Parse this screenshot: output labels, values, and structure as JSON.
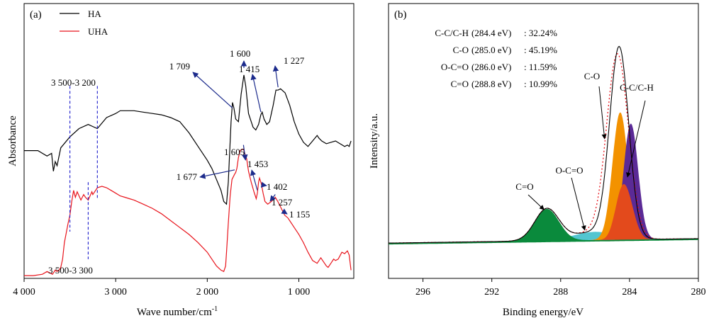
{
  "chart_data": [
    {
      "panel_label": "(a)",
      "type": "line",
      "xlabel": "Wave number/cm",
      "xlabel_sup": "-1",
      "ylabel": "Absorbance",
      "xlim": [
        4000,
        400
      ],
      "xticks": [
        4000,
        3000,
        2000,
        1000
      ],
      "xtick_labels": [
        "4 000",
        "3 000",
        "2 000",
        "1 000"
      ],
      "grid": false,
      "legend": "top-left",
      "series": [
        {
          "name": "HA",
          "color": "#000000",
          "points": [
            [
              4000,
              0.535
            ],
            [
              3850,
              0.535
            ],
            [
              3750,
              0.555
            ],
            [
              3700,
              0.545
            ],
            [
              3680,
              0.61
            ],
            [
              3660,
              0.575
            ],
            [
              3640,
              0.59
            ],
            [
              3600,
              0.525
            ],
            [
              3500,
              0.485
            ],
            [
              3400,
              0.455
            ],
            [
              3300,
              0.44
            ],
            [
              3200,
              0.455
            ],
            [
              3100,
              0.415
            ],
            [
              3000,
              0.4
            ],
            [
              2950,
              0.39
            ],
            [
              2900,
              0.39
            ],
            [
              2800,
              0.39
            ],
            [
              2700,
              0.395
            ],
            [
              2600,
              0.4
            ],
            [
              2500,
              0.405
            ],
            [
              2400,
              0.415
            ],
            [
              2300,
              0.43
            ],
            [
              2200,
              0.47
            ],
            [
              2100,
              0.52
            ],
            [
              2000,
              0.57
            ],
            [
              1950,
              0.6
            ],
            [
              1900,
              0.64
            ],
            [
              1850,
              0.68
            ],
            [
              1820,
              0.72
            ],
            [
              1790,
              0.73
            ],
            [
              1770,
              0.65
            ],
            [
              1740,
              0.43
            ],
            [
              1725,
              0.36
            ],
            [
              1709,
              0.38
            ],
            [
              1690,
              0.42
            ],
            [
              1660,
              0.43
            ],
            [
              1630,
              0.33
            ],
            [
              1600,
              0.26
            ],
            [
              1580,
              0.3
            ],
            [
              1550,
              0.4
            ],
            [
              1500,
              0.45
            ],
            [
              1470,
              0.46
            ],
            [
              1440,
              0.44
            ],
            [
              1415,
              0.405
            ],
            [
              1400,
              0.395
            ],
            [
              1380,
              0.42
            ],
            [
              1350,
              0.44
            ],
            [
              1320,
              0.43
            ],
            [
              1280,
              0.37
            ],
            [
              1250,
              0.315
            ],
            [
              1227,
              0.315
            ],
            [
              1200,
              0.31
            ],
            [
              1150,
              0.325
            ],
            [
              1100,
              0.37
            ],
            [
              1050,
              0.43
            ],
            [
              1000,
              0.475
            ],
            [
              950,
              0.505
            ],
            [
              900,
              0.52
            ],
            [
              850,
              0.5
            ],
            [
              800,
              0.48
            ],
            [
              780,
              0.49
            ],
            [
              750,
              0.5
            ],
            [
              700,
              0.51
            ],
            [
              650,
              0.505
            ],
            [
              600,
              0.5
            ],
            [
              550,
              0.51
            ],
            [
              500,
              0.52
            ],
            [
              470,
              0.515
            ],
            [
              450,
              0.52
            ],
            [
              430,
              0.5
            ]
          ]
        },
        {
          "name": "UHA",
          "color": "#e8141c",
          "points": [
            [
              4000,
              0.99
            ],
            [
              3900,
              0.99
            ],
            [
              3800,
              0.985
            ],
            [
              3750,
              0.975
            ],
            [
              3720,
              0.98
            ],
            [
              3690,
              0.985
            ],
            [
              3660,
              0.97
            ],
            [
              3640,
              0.975
            ],
            [
              3620,
              0.97
            ],
            [
              3600,
              0.96
            ],
            [
              3580,
              0.93
            ],
            [
              3560,
              0.87
            ],
            [
              3540,
              0.835
            ],
            [
              3520,
              0.8
            ],
            [
              3500,
              0.77
            ],
            [
              3480,
              0.72
            ],
            [
              3460,
              0.68
            ],
            [
              3440,
              0.705
            ],
            [
              3420,
              0.685
            ],
            [
              3400,
              0.7
            ],
            [
              3380,
              0.715
            ],
            [
              3350,
              0.695
            ],
            [
              3330,
              0.705
            ],
            [
              3300,
              0.715
            ],
            [
              3280,
              0.7
            ],
            [
              3260,
              0.685
            ],
            [
              3250,
              0.695
            ],
            [
              3200,
              0.67
            ],
            [
              3150,
              0.665
            ],
            [
              3100,
              0.67
            ],
            [
              3050,
              0.68
            ],
            [
              3000,
              0.69
            ],
            [
              2950,
              0.7
            ],
            [
              2900,
              0.705
            ],
            [
              2850,
              0.71
            ],
            [
              2800,
              0.715
            ],
            [
              2700,
              0.73
            ],
            [
              2600,
              0.745
            ],
            [
              2500,
              0.765
            ],
            [
              2400,
              0.79
            ],
            [
              2300,
              0.815
            ],
            [
              2200,
              0.84
            ],
            [
              2100,
              0.87
            ],
            [
              2000,
              0.905
            ],
            [
              1950,
              0.93
            ],
            [
              1900,
              0.955
            ],
            [
              1850,
              0.97
            ],
            [
              1820,
              0.975
            ],
            [
              1800,
              0.955
            ],
            [
              1790,
              0.905
            ],
            [
              1770,
              0.8
            ],
            [
              1750,
              0.7
            ],
            [
              1730,
              0.64
            ],
            [
              1700,
              0.62
            ],
            [
              1690,
              0.615
            ],
            [
              1677,
              0.6
            ],
            [
              1660,
              0.56
            ],
            [
              1640,
              0.535
            ],
            [
              1620,
              0.53
            ],
            [
              1605,
              0.53
            ],
            [
              1590,
              0.545
            ],
            [
              1570,
              0.565
            ],
            [
              1550,
              0.61
            ],
            [
              1520,
              0.65
            ],
            [
              1490,
              0.685
            ],
            [
              1465,
              0.71
            ],
            [
              1453,
              0.69
            ],
            [
              1440,
              0.65
            ],
            [
              1430,
              0.635
            ],
            [
              1410,
              0.655
            ],
            [
              1402,
              0.67
            ],
            [
              1390,
              0.69
            ],
            [
              1370,
              0.72
            ],
            [
              1340,
              0.73
            ],
            [
              1300,
              0.72
            ],
            [
              1257,
              0.705
            ],
            [
              1230,
              0.72
            ],
            [
              1200,
              0.74
            ],
            [
              1155,
              0.77
            ],
            [
              1120,
              0.78
            ],
            [
              1100,
              0.79
            ],
            [
              1050,
              0.815
            ],
            [
              1000,
              0.84
            ],
            [
              950,
              0.87
            ],
            [
              900,
              0.905
            ],
            [
              850,
              0.935
            ],
            [
              800,
              0.945
            ],
            [
              780,
              0.935
            ],
            [
              760,
              0.925
            ],
            [
              740,
              0.935
            ],
            [
              700,
              0.955
            ],
            [
              680,
              0.96
            ],
            [
              650,
              0.945
            ],
            [
              620,
              0.93
            ],
            [
              600,
              0.935
            ],
            [
              570,
              0.93
            ],
            [
              530,
              0.905
            ],
            [
              500,
              0.91
            ],
            [
              470,
              0.9
            ],
            [
              450,
              0.915
            ],
            [
              430,
              0.97
            ]
          ]
        }
      ],
      "peak_annotations": [
        {
          "text": "1 709",
          "x": 1709,
          "series": "HA"
        },
        {
          "text": "1 600",
          "x": 1600,
          "series": "HA"
        },
        {
          "text": "1 415",
          "x": 1415,
          "series": "HA"
        },
        {
          "text": "1 227",
          "x": 1227,
          "series": "HA"
        },
        {
          "text": "1 677",
          "x": 1677,
          "series": "UHA"
        },
        {
          "text": "1 605",
          "x": 1605,
          "series": "UHA"
        },
        {
          "text": "1 453",
          "x": 1453,
          "series": "UHA"
        },
        {
          "text": "1 402",
          "x": 1402,
          "series": "UHA"
        },
        {
          "text": "1 257",
          "x": 1257,
          "series": "UHA"
        },
        {
          "text": "1 155",
          "x": 1155,
          "series": "UHA"
        }
      ],
      "range_annotations": [
        {
          "text": "3 500-3 200",
          "x": [
            3500,
            3200
          ],
          "series": "HA"
        },
        {
          "text": "3 500-3 300",
          "x": [
            3500,
            3300
          ],
          "series": "UHA"
        }
      ]
    },
    {
      "panel_label": "(b)",
      "type": "area",
      "xlabel": "Binding energy/eV",
      "ylabel": "Intensity/a.u.",
      "xlim": [
        298,
        280
      ],
      "xticks": [
        296,
        292,
        288,
        284,
        280
      ],
      "xtick_labels": [
        "296",
        "292",
        "288",
        "284",
        "280"
      ],
      "grid": false,
      "background": 0.06,
      "raw_curve_color": "#000000",
      "envelope_color": "#e8141c",
      "components": [
        {
          "name": "C-C/C-H",
          "center": 284.4,
          "percent": "32.24%",
          "amp": 0.565,
          "sigma": 0.42,
          "color": "#5b2a96",
          "dx": -0.48
        },
        {
          "name": "C-O",
          "center": 285.0,
          "percent": "45.19%",
          "amp": 0.62,
          "sigma": 0.45,
          "color": "#f39200",
          "dx": -0.46
        },
        {
          "name": "O-C=O",
          "center": 286.0,
          "percent": "11.59%",
          "amp": 0.04,
          "sigma": 1.25,
          "color": "#3fbfcb",
          "dx": 0
        },
        {
          "name": "C=O",
          "center": 288.8,
          "percent": "10.99%",
          "amp": 0.155,
          "sigma": 0.7,
          "color": "#0a8a3c",
          "dx": 0
        },
        {
          "name": "",
          "center": 284.7,
          "percent": "",
          "amp": 0.0,
          "sigma": 0.6,
          "color": "#e34a1c",
          "dx": 0
        }
      ],
      "table_rows": [
        {
          "name": "C-C/C-H",
          "energy": "(284.4 eV)",
          "percent": ": 32.24%"
        },
        {
          "name": "C-O",
          "energy": "(285.0 eV)",
          "percent": ": 45.19%"
        },
        {
          "name": "O-C=O",
          "energy": "(286.0 eV)",
          "percent": ": 11.59%"
        },
        {
          "name": "C=O",
          "energy": "(288.8 eV)",
          "percent": ": 10.99%"
        }
      ],
      "peak_labels": [
        {
          "text": "C-O",
          "target_x": 285.2
        },
        {
          "text": "C-C/C-H",
          "target_x": 284.2
        },
        {
          "text": "O-C=O",
          "target_x": 286.6
        },
        {
          "text": "C=O",
          "target_x": 288.8
        }
      ]
    }
  ]
}
